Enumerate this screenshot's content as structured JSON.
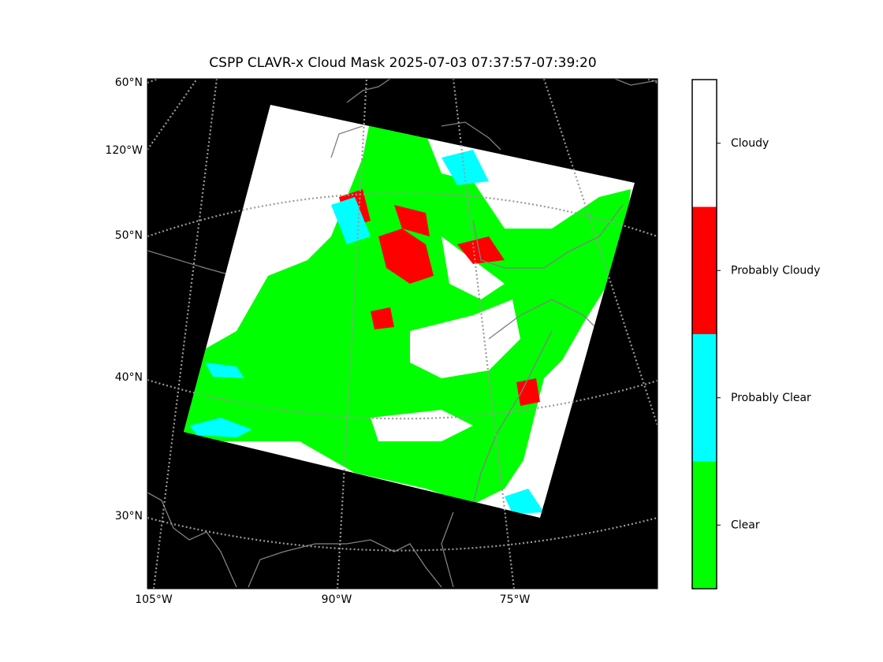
{
  "map": {
    "title": "CSPP CLAVR-x Cloud Mask 2025-07-03 07:37:57-07:39:20",
    "left_labels": [
      "60°N",
      "120°W",
      "50°N",
      "40°N",
      "30°N"
    ],
    "bottom_labels": [
      "105°W",
      "90°W",
      "75°W"
    ]
  },
  "colorbar": {
    "categories": [
      {
        "label": "Clear",
        "color": "#00ff00"
      },
      {
        "label": "Probably Clear",
        "color": "#00ffff"
      },
      {
        "label": "Probably Cloudy",
        "color": "#ff0000"
      },
      {
        "label": "Cloudy",
        "color": "#ffffff"
      }
    ]
  }
}
